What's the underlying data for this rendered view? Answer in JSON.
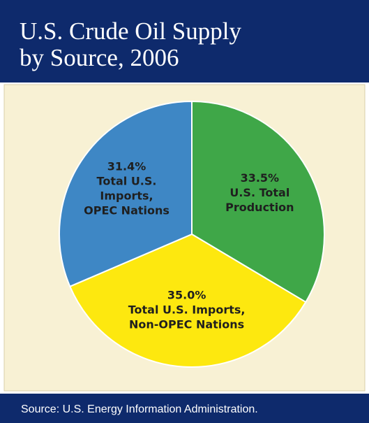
{
  "chart_data": {
    "type": "pie",
    "title": "U.S. Crude Oil Supply\nby Source, 2006",
    "categories": [
      "U.S. Total\nProduction",
      "Total U.S. Imports,\nNon-OPEC Nations",
      "Total U.S.\nImports,\nOPEC Nations"
    ],
    "values": [
      33.5,
      35.0,
      31.4
    ],
    "value_labels": [
      "33.5%",
      "35.0%",
      "31.4%"
    ],
    "colors": [
      "#3fa748",
      "#fde80f",
      "#3e87c5"
    ],
    "source": "Source: U.S. Energy Information Administration."
  }
}
